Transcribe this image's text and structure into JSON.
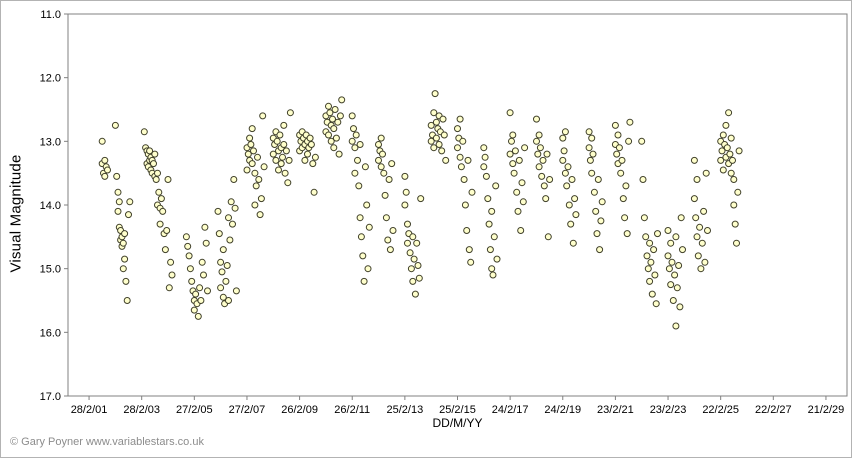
{
  "chart_data": {
    "type": "scatter",
    "title": "",
    "xlabel": "DD/M/YY",
    "ylabel": "Visual Magnitude",
    "footer": "© Gary Poyner www.variablestars.co.uk",
    "y_axis_inverted": true,
    "ylim": [
      11.0,
      17.0
    ],
    "xlim": [
      2000.2,
      2029.8
    ],
    "grid": false,
    "legend": "none",
    "y_tick_labels": [
      "11.0",
      "12.0",
      "13.0",
      "14.0",
      "15.0",
      "16.0",
      "17.0"
    ],
    "y_tick_values": [
      11,
      12,
      13,
      14,
      15,
      16,
      17
    ],
    "x_tick_labels": [
      "28/2/01",
      "28/2/03",
      "27/2/05",
      "27/2/07",
      "26/2/09",
      "26/2/11",
      "25/2/13",
      "25/2/15",
      "24/2/17",
      "24/2/19",
      "23/2/21",
      "23/2/23",
      "22/2/25",
      "22/2/27",
      "21/2/29"
    ],
    "x_tick_values": [
      2001,
      2003,
      2005,
      2007,
      2009,
      2011,
      2013,
      2015,
      2017,
      2019,
      2021,
      2023,
      2025,
      2027,
      2029
    ],
    "marker": {
      "fill": "#ffffcc",
      "stroke": "#40402a",
      "radius": 3,
      "stroke_width": 1
    },
    "axis_color": "#808080",
    "text_color": "#000000",
    "points": [
      [
        2001.5,
        13.0
      ],
      [
        2001.5,
        13.35
      ],
      [
        2001.55,
        13.5
      ],
      [
        2001.6,
        13.3
      ],
      [
        2001.6,
        13.55
      ],
      [
        2001.65,
        13.4
      ],
      [
        2001.7,
        13.45
      ],
      [
        2002.0,
        12.75
      ],
      [
        2002.05,
        13.55
      ],
      [
        2002.1,
        13.8
      ],
      [
        2002.1,
        14.1
      ],
      [
        2002.15,
        13.95
      ],
      [
        2002.15,
        14.35
      ],
      [
        2002.2,
        14.4
      ],
      [
        2002.2,
        14.55
      ],
      [
        2002.25,
        14.5
      ],
      [
        2002.25,
        14.65
      ],
      [
        2002.3,
        14.6
      ],
      [
        2002.3,
        15.0
      ],
      [
        2002.35,
        14.45
      ],
      [
        2002.35,
        14.85
      ],
      [
        2002.4,
        15.2
      ],
      [
        2002.45,
        15.5
      ],
      [
        2002.5,
        14.15
      ],
      [
        2002.55,
        13.95
      ],
      [
        2003.1,
        12.85
      ],
      [
        2003.15,
        13.1
      ],
      [
        2003.2,
        13.15
      ],
      [
        2003.2,
        13.35
      ],
      [
        2003.25,
        13.2
      ],
      [
        2003.25,
        13.4
      ],
      [
        2003.3,
        13.15
      ],
      [
        2003.3,
        13.3
      ],
      [
        2003.35,
        13.25
      ],
      [
        2003.35,
        13.45
      ],
      [
        2003.4,
        13.3
      ],
      [
        2003.4,
        13.5
      ],
      [
        2003.45,
        13.35
      ],
      [
        2003.5,
        13.55
      ],
      [
        2003.5,
        13.2
      ],
      [
        2003.55,
        13.6
      ],
      [
        2003.6,
        13.5
      ],
      [
        2003.6,
        14.0
      ],
      [
        2003.65,
        13.8
      ],
      [
        2003.7,
        14.05
      ],
      [
        2003.7,
        14.3
      ],
      [
        2003.75,
        13.9
      ],
      [
        2003.8,
        14.1
      ],
      [
        2003.85,
        14.45
      ],
      [
        2003.9,
        14.7
      ],
      [
        2003.95,
        14.4
      ],
      [
        2004.0,
        13.6
      ],
      [
        2004.05,
        15.3
      ],
      [
        2004.1,
        14.9
      ],
      [
        2004.15,
        15.1
      ],
      [
        2004.7,
        14.5
      ],
      [
        2004.75,
        14.65
      ],
      [
        2004.8,
        14.8
      ],
      [
        2004.85,
        15.0
      ],
      [
        2004.9,
        15.2
      ],
      [
        2004.95,
        15.35
      ],
      [
        2005.0,
        15.5
      ],
      [
        2005.0,
        15.65
      ],
      [
        2005.05,
        15.4
      ],
      [
        2005.1,
        15.55
      ],
      [
        2005.15,
        15.75
      ],
      [
        2005.2,
        15.3
      ],
      [
        2005.25,
        15.5
      ],
      [
        2005.3,
        14.9
      ],
      [
        2005.35,
        15.1
      ],
      [
        2005.4,
        14.35
      ],
      [
        2005.45,
        14.6
      ],
      [
        2005.5,
        15.35
      ],
      [
        2005.9,
        14.1
      ],
      [
        2005.95,
        14.45
      ],
      [
        2006.0,
        14.9
      ],
      [
        2006.0,
        15.3
      ],
      [
        2006.05,
        15.05
      ],
      [
        2006.1,
        15.45
      ],
      [
        2006.1,
        14.7
      ],
      [
        2006.15,
        15.55
      ],
      [
        2006.2,
        15.2
      ],
      [
        2006.25,
        14.95
      ],
      [
        2006.3,
        15.5
      ],
      [
        2006.3,
        14.2
      ],
      [
        2006.35,
        14.55
      ],
      [
        2006.4,
        13.95
      ],
      [
        2006.45,
        14.3
      ],
      [
        2006.5,
        13.6
      ],
      [
        2006.55,
        14.05
      ],
      [
        2006.6,
        15.35
      ],
      [
        2007.0,
        13.1
      ],
      [
        2007.0,
        13.45
      ],
      [
        2007.05,
        13.2
      ],
      [
        2007.1,
        12.95
      ],
      [
        2007.1,
        13.3
      ],
      [
        2007.15,
        13.05
      ],
      [
        2007.2,
        13.35
      ],
      [
        2007.2,
        12.8
      ],
      [
        2007.25,
        13.15
      ],
      [
        2007.3,
        13.5
      ],
      [
        2007.3,
        14.0
      ],
      [
        2007.35,
        13.7
      ],
      [
        2007.4,
        13.25
      ],
      [
        2007.45,
        13.6
      ],
      [
        2007.5,
        14.15
      ],
      [
        2007.55,
        13.9
      ],
      [
        2007.6,
        12.6
      ],
      [
        2007.65,
        13.4
      ],
      [
        2008.0,
        12.95
      ],
      [
        2008.0,
        13.2
      ],
      [
        2008.05,
        13.05
      ],
      [
        2008.1,
        12.85
      ],
      [
        2008.1,
        13.3
      ],
      [
        2008.15,
        13.0
      ],
      [
        2008.2,
        13.15
      ],
      [
        2008.2,
        13.45
      ],
      [
        2008.25,
        12.9
      ],
      [
        2008.3,
        13.1
      ],
      [
        2008.3,
        13.35
      ],
      [
        2008.35,
        13.25
      ],
      [
        2008.4,
        12.75
      ],
      [
        2008.4,
        13.05
      ],
      [
        2008.45,
        13.5
      ],
      [
        2008.5,
        13.15
      ],
      [
        2008.55,
        13.65
      ],
      [
        2008.6,
        13.3
      ],
      [
        2008.65,
        12.55
      ],
      [
        2009.0,
        12.9
      ],
      [
        2009.0,
        13.15
      ],
      [
        2009.05,
        13.0
      ],
      [
        2009.1,
        12.85
      ],
      [
        2009.1,
        13.1
      ],
      [
        2009.15,
        12.95
      ],
      [
        2009.2,
        13.05
      ],
      [
        2009.2,
        13.3
      ],
      [
        2009.25,
        12.9
      ],
      [
        2009.3,
        13.0
      ],
      [
        2009.3,
        13.2
      ],
      [
        2009.35,
        13.1
      ],
      [
        2009.4,
        12.95
      ],
      [
        2009.45,
        13.05
      ],
      [
        2009.5,
        13.35
      ],
      [
        2009.55,
        13.8
      ],
      [
        2009.6,
        13.25
      ],
      [
        2010.0,
        12.6
      ],
      [
        2010.0,
        12.85
      ],
      [
        2010.05,
        12.7
      ],
      [
        2010.1,
        12.45
      ],
      [
        2010.1,
        12.9
      ],
      [
        2010.15,
        12.55
      ],
      [
        2010.2,
        12.75
      ],
      [
        2010.2,
        13.0
      ],
      [
        2010.25,
        12.65
      ],
      [
        2010.3,
        12.8
      ],
      [
        2010.3,
        13.1
      ],
      [
        2010.35,
        12.5
      ],
      [
        2010.4,
        12.95
      ],
      [
        2010.45,
        12.7
      ],
      [
        2010.5,
        13.2
      ],
      [
        2010.55,
        12.6
      ],
      [
        2010.6,
        12.35
      ],
      [
        2011.0,
        12.6
      ],
      [
        2011.0,
        13.0
      ],
      [
        2011.05,
        12.8
      ],
      [
        2011.1,
        13.1
      ],
      [
        2011.1,
        13.5
      ],
      [
        2011.15,
        12.9
      ],
      [
        2011.2,
        13.3
      ],
      [
        2011.25,
        13.7
      ],
      [
        2011.3,
        14.2
      ],
      [
        2011.3,
        13.05
      ],
      [
        2011.35,
        14.5
      ],
      [
        2011.4,
        14.8
      ],
      [
        2011.45,
        15.2
      ],
      [
        2011.5,
        13.4
      ],
      [
        2011.55,
        14.0
      ],
      [
        2011.6,
        15.0
      ],
      [
        2011.65,
        14.35
      ],
      [
        2012.0,
        13.05
      ],
      [
        2012.0,
        13.3
      ],
      [
        2012.05,
        13.15
      ],
      [
        2012.1,
        12.95
      ],
      [
        2012.1,
        13.4
      ],
      [
        2012.15,
        13.2
      ],
      [
        2012.2,
        13.5
      ],
      [
        2012.25,
        13.85
      ],
      [
        2012.3,
        14.2
      ],
      [
        2012.35,
        14.55
      ],
      [
        2012.4,
        13.6
      ],
      [
        2012.45,
        14.7
      ],
      [
        2012.5,
        13.35
      ],
      [
        2012.55,
        14.4
      ],
      [
        2013.0,
        13.55
      ],
      [
        2013.0,
        14.0
      ],
      [
        2013.05,
        13.8
      ],
      [
        2013.1,
        14.3
      ],
      [
        2013.1,
        14.6
      ],
      [
        2013.15,
        14.45
      ],
      [
        2013.2,
        14.75
      ],
      [
        2013.25,
        15.0
      ],
      [
        2013.3,
        14.5
      ],
      [
        2013.3,
        15.2
      ],
      [
        2013.35,
        14.85
      ],
      [
        2013.4,
        15.4
      ],
      [
        2013.45,
        14.6
      ],
      [
        2013.5,
        14.95
      ],
      [
        2013.55,
        15.15
      ],
      [
        2013.6,
        13.9
      ],
      [
        2014.0,
        13.0
      ],
      [
        2014.0,
        12.75
      ],
      [
        2014.05,
        12.9
      ],
      [
        2014.1,
        12.55
      ],
      [
        2014.1,
        13.1
      ],
      [
        2014.15,
        12.25
      ],
      [
        2014.2,
        12.7
      ],
      [
        2014.2,
        12.95
      ],
      [
        2014.25,
        12.8
      ],
      [
        2014.3,
        12.6
      ],
      [
        2014.3,
        13.05
      ],
      [
        2014.35,
        12.85
      ],
      [
        2014.4,
        13.15
      ],
      [
        2014.45,
        12.65
      ],
      [
        2014.5,
        12.9
      ],
      [
        2014.55,
        13.3
      ],
      [
        2015.0,
        12.8
      ],
      [
        2015.0,
        13.1
      ],
      [
        2015.05,
        12.95
      ],
      [
        2015.1,
        13.25
      ],
      [
        2015.1,
        12.65
      ],
      [
        2015.15,
        13.4
      ],
      [
        2015.2,
        13.0
      ],
      [
        2015.25,
        13.6
      ],
      [
        2015.3,
        14.0
      ],
      [
        2015.35,
        14.4
      ],
      [
        2015.4,
        13.3
      ],
      [
        2015.45,
        14.7
      ],
      [
        2015.5,
        14.9
      ],
      [
        2015.55,
        13.8
      ],
      [
        2016.0,
        13.1
      ],
      [
        2016.0,
        13.4
      ],
      [
        2016.05,
        13.25
      ],
      [
        2016.1,
        13.55
      ],
      [
        2016.15,
        13.9
      ],
      [
        2016.2,
        14.3
      ],
      [
        2016.25,
        14.7
      ],
      [
        2016.3,
        15.0
      ],
      [
        2016.3,
        14.1
      ],
      [
        2016.35,
        15.1
      ],
      [
        2016.4,
        14.5
      ],
      [
        2016.45,
        13.7
      ],
      [
        2016.5,
        14.85
      ],
      [
        2017.0,
        12.55
      ],
      [
        2017.0,
        13.2
      ],
      [
        2017.05,
        13.0
      ],
      [
        2017.1,
        13.35
      ],
      [
        2017.1,
        12.9
      ],
      [
        2017.15,
        13.5
      ],
      [
        2017.2,
        13.15
      ],
      [
        2017.25,
        13.8
      ],
      [
        2017.3,
        14.1
      ],
      [
        2017.35,
        13.3
      ],
      [
        2017.4,
        14.4
      ],
      [
        2017.45,
        13.65
      ],
      [
        2017.5,
        13.95
      ],
      [
        2017.55,
        13.1
      ],
      [
        2018.0,
        12.65
      ],
      [
        2018.0,
        13.0
      ],
      [
        2018.05,
        13.2
      ],
      [
        2018.1,
        12.9
      ],
      [
        2018.1,
        13.4
      ],
      [
        2018.15,
        13.1
      ],
      [
        2018.2,
        13.55
      ],
      [
        2018.25,
        13.3
      ],
      [
        2018.3,
        13.7
      ],
      [
        2018.35,
        13.9
      ],
      [
        2018.4,
        13.2
      ],
      [
        2018.45,
        14.5
      ],
      [
        2018.5,
        13.6
      ],
      [
        2019.0,
        12.95
      ],
      [
        2019.0,
        13.3
      ],
      [
        2019.05,
        13.15
      ],
      [
        2019.1,
        13.5
      ],
      [
        2019.1,
        12.85
      ],
      [
        2019.15,
        13.7
      ],
      [
        2019.2,
        13.4
      ],
      [
        2019.25,
        14.0
      ],
      [
        2019.3,
        14.3
      ],
      [
        2019.35,
        13.6
      ],
      [
        2019.4,
        14.6
      ],
      [
        2019.45,
        13.9
      ],
      [
        2019.5,
        14.15
      ],
      [
        2020.0,
        12.85
      ],
      [
        2020.0,
        13.1
      ],
      [
        2020.05,
        13.3
      ],
      [
        2020.1,
        12.95
      ],
      [
        2020.1,
        13.5
      ],
      [
        2020.15,
        13.2
      ],
      [
        2020.2,
        13.8
      ],
      [
        2020.25,
        14.1
      ],
      [
        2020.3,
        14.45
      ],
      [
        2020.35,
        13.6
      ],
      [
        2020.4,
        14.7
      ],
      [
        2020.45,
        14.25
      ],
      [
        2020.5,
        13.95
      ],
      [
        2021.0,
        12.75
      ],
      [
        2021.0,
        13.05
      ],
      [
        2021.05,
        13.2
      ],
      [
        2021.1,
        12.9
      ],
      [
        2021.1,
        13.35
      ],
      [
        2021.15,
        13.1
      ],
      [
        2021.2,
        13.5
      ],
      [
        2021.25,
        13.3
      ],
      [
        2021.3,
        13.9
      ],
      [
        2021.35,
        14.2
      ],
      [
        2021.4,
        13.7
      ],
      [
        2021.45,
        14.45
      ],
      [
        2021.5,
        13.0
      ],
      [
        2021.55,
        12.7
      ],
      [
        2022.0,
        13.0
      ],
      [
        2022.05,
        13.6
      ],
      [
        2022.1,
        14.2
      ],
      [
        2022.15,
        14.5
      ],
      [
        2022.2,
        14.8
      ],
      [
        2022.25,
        15.0
      ],
      [
        2022.3,
        14.6
      ],
      [
        2022.3,
        15.2
      ],
      [
        2022.35,
        14.9
      ],
      [
        2022.4,
        15.4
      ],
      [
        2022.45,
        14.7
      ],
      [
        2022.5,
        15.1
      ],
      [
        2022.55,
        15.55
      ],
      [
        2022.6,
        14.45
      ],
      [
        2023.0,
        14.4
      ],
      [
        2023.0,
        14.8
      ],
      [
        2023.05,
        15.0
      ],
      [
        2023.1,
        14.6
      ],
      [
        2023.1,
        15.25
      ],
      [
        2023.15,
        14.9
      ],
      [
        2023.2,
        15.5
      ],
      [
        2023.25,
        15.1
      ],
      [
        2023.3,
        15.9
      ],
      [
        2023.3,
        14.5
      ],
      [
        2023.35,
        15.3
      ],
      [
        2023.4,
        14.95
      ],
      [
        2023.45,
        15.6
      ],
      [
        2023.5,
        14.2
      ],
      [
        2023.55,
        14.7
      ],
      [
        2024.0,
        13.3
      ],
      [
        2024.0,
        13.9
      ],
      [
        2024.05,
        14.2
      ],
      [
        2024.1,
        14.5
      ],
      [
        2024.1,
        13.6
      ],
      [
        2024.15,
        14.8
      ],
      [
        2024.2,
        14.35
      ],
      [
        2024.25,
        15.0
      ],
      [
        2024.3,
        14.6
      ],
      [
        2024.35,
        14.1
      ],
      [
        2024.4,
        14.9
      ],
      [
        2024.45,
        13.5
      ],
      [
        2024.5,
        14.4
      ],
      [
        2025.0,
        13.0
      ],
      [
        2025.0,
        13.3
      ],
      [
        2025.05,
        13.15
      ],
      [
        2025.1,
        12.9
      ],
      [
        2025.1,
        13.45
      ],
      [
        2025.15,
        13.05
      ],
      [
        2025.2,
        13.25
      ],
      [
        2025.2,
        12.75
      ],
      [
        2025.25,
        13.1
      ],
      [
        2025.3,
        13.35
      ],
      [
        2025.3,
        12.55
      ],
      [
        2025.35,
        13.2
      ],
      [
        2025.4,
        12.95
      ],
      [
        2025.4,
        13.5
      ],
      [
        2025.45,
        13.3
      ],
      [
        2025.5,
        13.6
      ],
      [
        2025.5,
        14.0
      ],
      [
        2025.55,
        14.3
      ],
      [
        2025.6,
        14.6
      ],
      [
        2025.65,
        13.8
      ],
      [
        2025.7,
        13.15
      ]
    ]
  }
}
